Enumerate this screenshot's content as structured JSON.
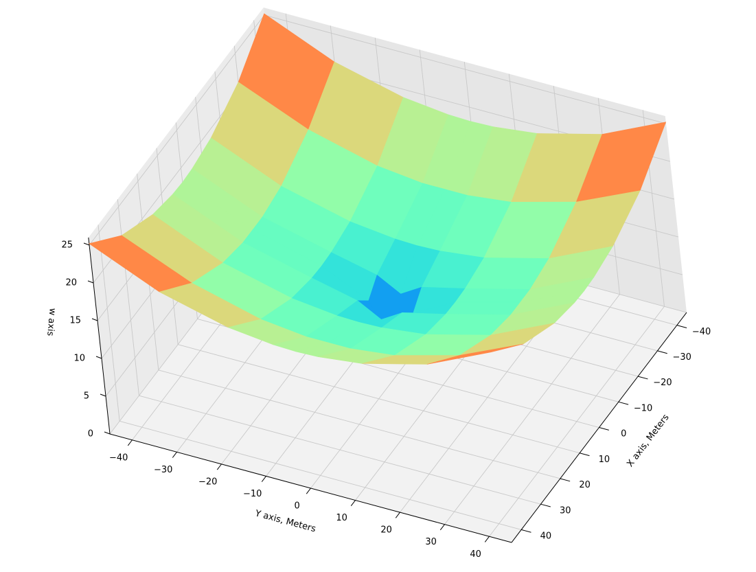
{
  "chart_data": {
    "type": "surface",
    "colormap": "rainbow",
    "xlabel": "X axis, Meters",
    "ylabel": "Y axis, Meters",
    "zlabel": "w axis",
    "x": [
      -45,
      -30,
      -15,
      -5,
      0,
      5,
      15,
      30,
      45
    ],
    "y": [
      -45,
      -30,
      -15,
      -5,
      0,
      5,
      15,
      30,
      45
    ],
    "z": [
      [
        25.2,
        21.2,
        18.9,
        18.2,
        18.1,
        18.2,
        18.9,
        21.2,
        25.2
      ],
      [
        21.2,
        17.3,
        14.9,
        14.2,
        14.2,
        14.2,
        14.9,
        17.3,
        21.2
      ],
      [
        18.9,
        14.9,
        12.6,
        11.9,
        11.8,
        11.9,
        12.6,
        14.9,
        18.9
      ],
      [
        18.2,
        14.2,
        11.9,
        10.5,
        8.8,
        10.5,
        11.9,
        14.2,
        18.2
      ],
      [
        18.1,
        14.2,
        11.8,
        8.8,
        3.0,
        8.8,
        11.8,
        14.2,
        18.1
      ],
      [
        18.2,
        14.2,
        11.9,
        10.5,
        8.8,
        10.5,
        11.9,
        14.2,
        18.2
      ],
      [
        18.9,
        14.9,
        12.6,
        11.9,
        11.8,
        11.9,
        12.6,
        14.9,
        18.9
      ],
      [
        21.2,
        17.3,
        14.9,
        14.2,
        14.2,
        14.2,
        14.9,
        17.3,
        21.2
      ],
      [
        25.2,
        21.2,
        18.9,
        18.2,
        18.1,
        18.2,
        18.9,
        21.2,
        25.2
      ]
    ],
    "xlim": [
      -45,
      45
    ],
    "ylim": [
      -45,
      45
    ],
    "zlim": [
      0,
      26
    ],
    "xticks": [
      {
        "value": -40,
        "label": "−40"
      },
      {
        "value": -30,
        "label": "−30"
      },
      {
        "value": -20,
        "label": "−20"
      },
      {
        "value": -10,
        "label": "−10"
      },
      0,
      10,
      20,
      30,
      40
    ],
    "yticks": [
      {
        "value": -40,
        "label": "−40"
      },
      {
        "value": -30,
        "label": "−30"
      },
      {
        "value": -20,
        "label": "−20"
      },
      {
        "value": -10,
        "label": "−10"
      },
      0,
      10,
      20,
      30,
      40
    ],
    "zticks": [
      0,
      5,
      10,
      15,
      20,
      25
    ],
    "grid": true
  }
}
